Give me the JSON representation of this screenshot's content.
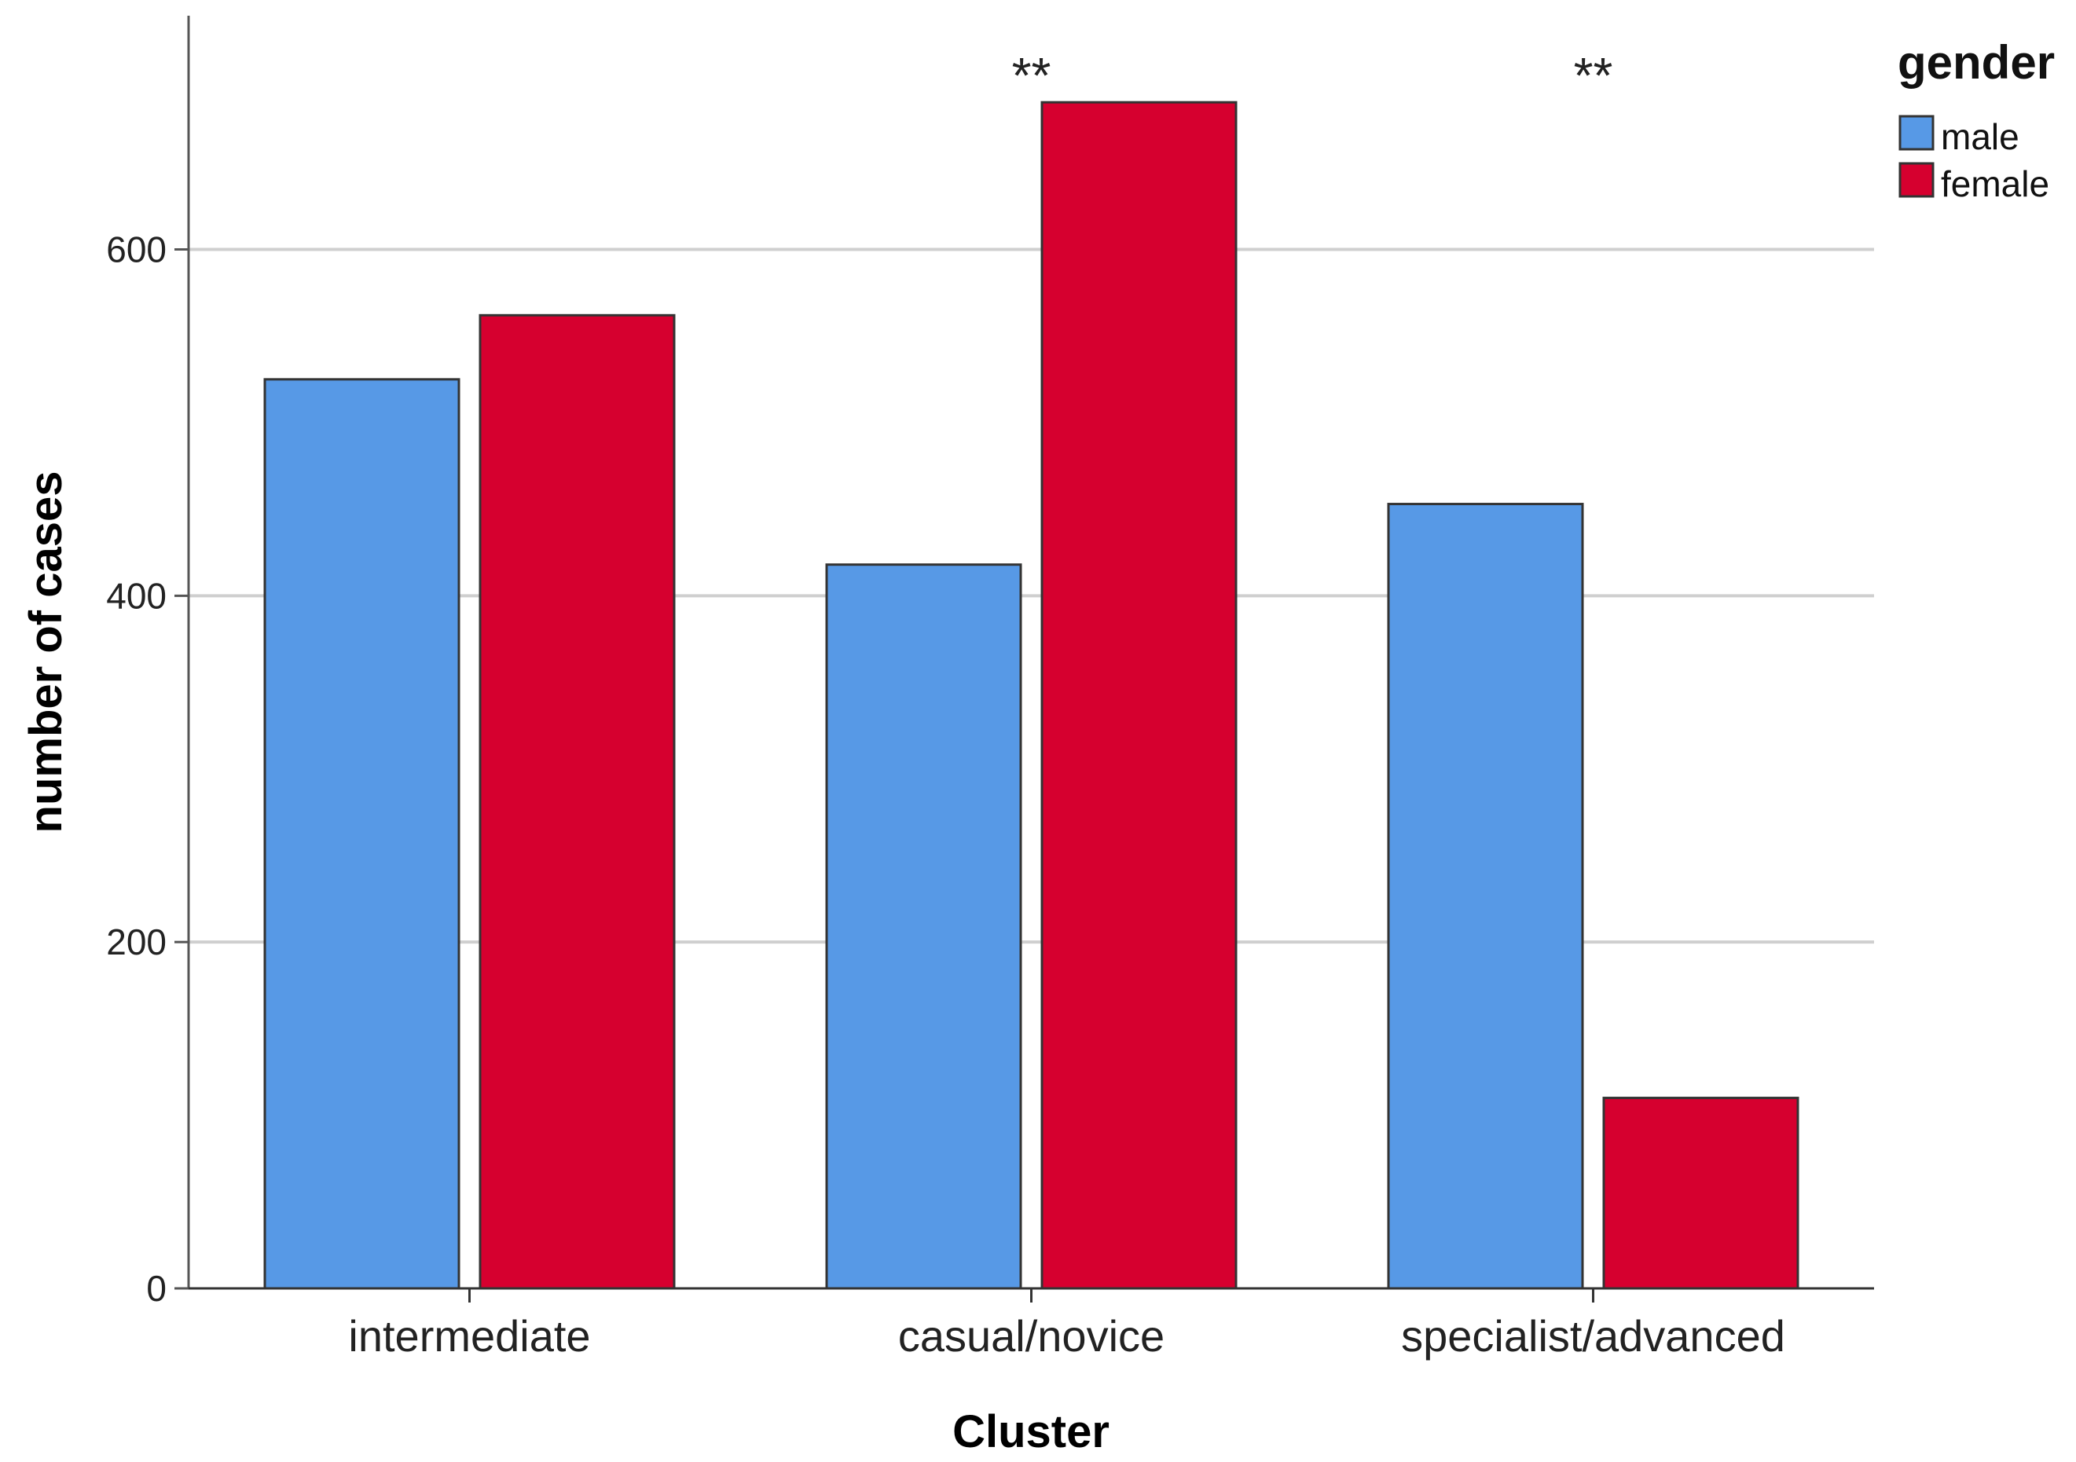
{
  "chart_data": {
    "type": "bar",
    "categories": [
      "intermediate",
      "casual/novice",
      "specialist/advanced"
    ],
    "series": [
      {
        "name": "male",
        "values": [
          525,
          418,
          453
        ],
        "color": "#5799e6"
      },
      {
        "name": "female",
        "values": [
          562,
          685,
          110
        ],
        "color": "#d6002f"
      }
    ],
    "annotations": [
      "",
      "**",
      "**"
    ],
    "xlabel": "Cluster",
    "ylabel": "number of cases",
    "ylim": [
      0,
      735
    ],
    "yticks": [
      0,
      200,
      400,
      600
    ],
    "grid": true,
    "legend": {
      "title": "gender",
      "position": "top-right"
    }
  }
}
